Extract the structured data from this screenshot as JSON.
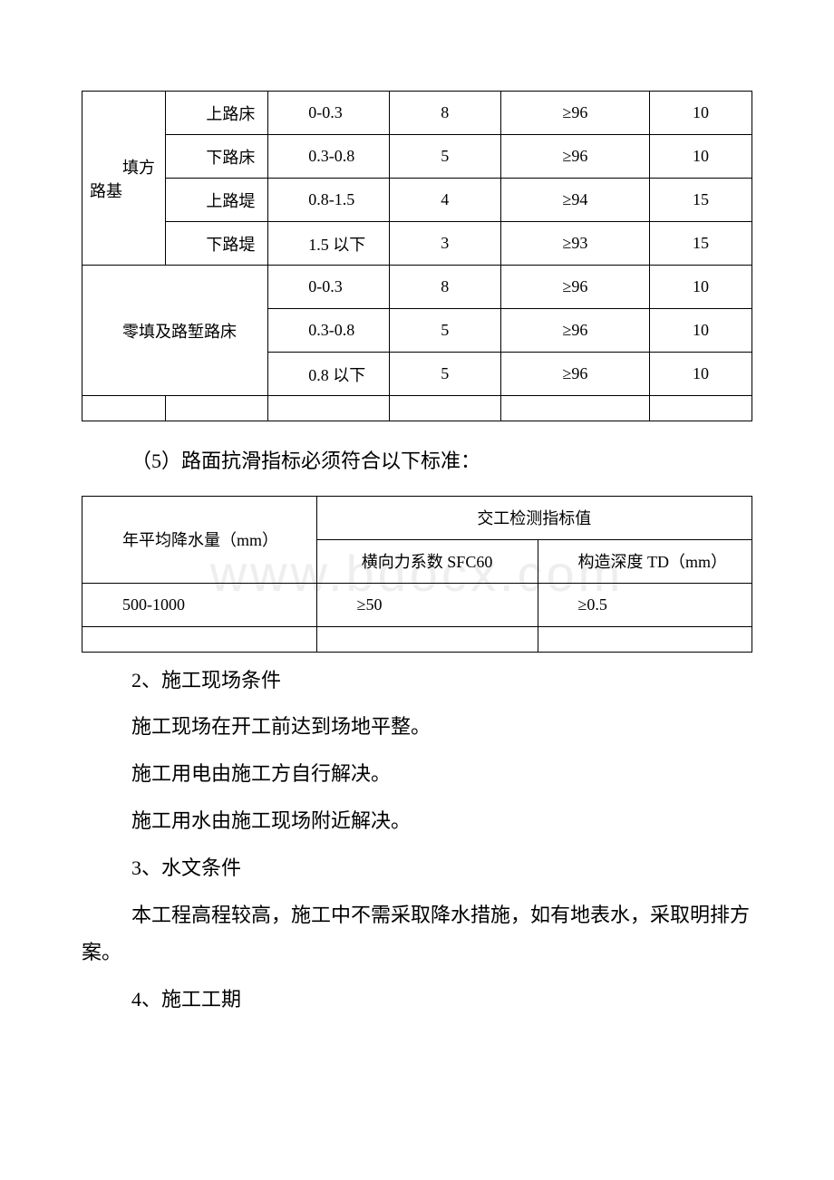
{
  "watermark": "www.bdocx.com",
  "table1": {
    "group1_label": "填方路基",
    "rows": [
      {
        "label": "上路床",
        "depth": "0-0.3",
        "v3": "8",
        "v4": "≥96",
        "v5": "10"
      },
      {
        "label": "下路床",
        "depth": "0.3-0.8",
        "v3": "5",
        "v4": "≥96",
        "v5": "10"
      },
      {
        "label": "上路堤",
        "depth": "0.8-1.5",
        "v3": "4",
        "v4": "≥94",
        "v5": "15"
      },
      {
        "label": "下路堤",
        "depth": "1.5 以下",
        "v3": "3",
        "v4": "≥93",
        "v5": "15"
      }
    ],
    "group2_label": "零填及路堑路床",
    "rows2": [
      {
        "depth": "0-0.3",
        "v3": "8",
        "v4": "≥96",
        "v5": "10"
      },
      {
        "depth": "0.3-0.8",
        "v3": "5",
        "v4": "≥96",
        "v5": "10"
      },
      {
        "depth": "0.8 以下",
        "v3": "5",
        "v4": "≥96",
        "v5": "10"
      }
    ]
  },
  "heading5": "（5）路面抗滑指标必须符合以下标准：",
  "table2": {
    "h1": "年平均降水量（mm）",
    "h2": "交工检测指标值",
    "h2a": "横向力系数 SFC60",
    "h2b": "构造深度 TD（mm）",
    "r1c1": "500-1000",
    "r1c2": "≥50",
    "r1c3": "≥0.5"
  },
  "p2_title": "2、施工现场条件",
  "p2_l1": "施工现场在开工前达到场地平整。",
  "p2_l2": "施工用电由施工方自行解决。",
  "p2_l3": "施工用水由施工现场附近解决。",
  "p3_title": "3、水文条件",
  "p3_l1": "本工程高程较高，施工中不需采取降水措施，如有地表水，采取明排方案。",
  "p4_title": "4、施工工期"
}
